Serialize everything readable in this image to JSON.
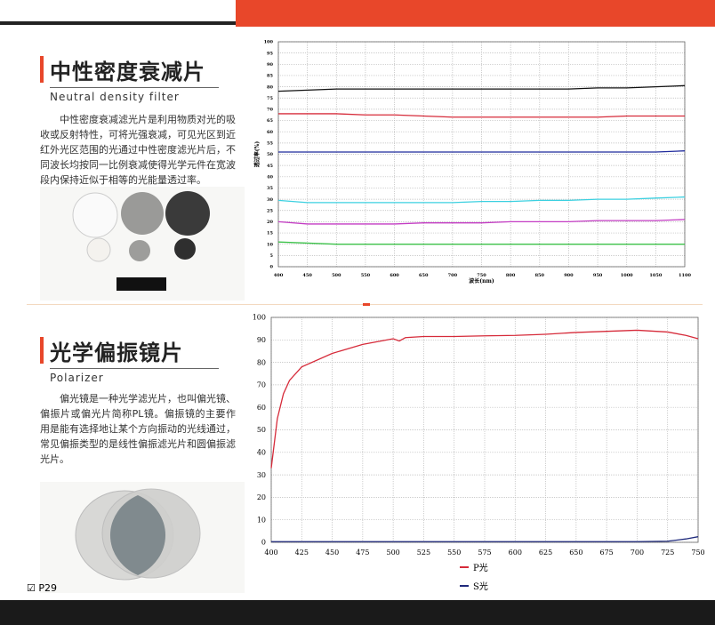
{
  "sections": [
    {
      "title": "中性密度衰减片",
      "subtitle": "Neutral density filter",
      "text": "中性密度衰减滤光片是利用物质对光的吸收或反射特性，可将光强衰减，可见光区到近红外光区范围的光通过中性密度滤光片后，不同波长均按同一比例衰减使得光学元件在宽波段内保持近似于相等的光能量透过率。"
    },
    {
      "title": "光学偏振镜片",
      "subtitle": "Polarizer",
      "text": "偏光镜是一种光学滤光片，也叫偏光镜、偏振片或偏光片简称PL镜。偏振镜的主要作用是能有选择地让某个方向振动的光线通过，常见偏振类型的是线性偏振滤光片和圆偏振滤光片。"
    }
  ],
  "page_label": "P29",
  "chart_data": [
    {
      "type": "line",
      "xlabel": "波长(nm)",
      "ylabel": "透过率(%)",
      "x": [
        400,
        450,
        500,
        550,
        600,
        650,
        700,
        750,
        800,
        850,
        900,
        950,
        1000,
        1050,
        1100
      ],
      "series": [
        {
          "color": "#111111",
          "values": [
            78,
            78.5,
            79,
            79,
            79,
            79,
            79,
            79,
            79,
            79,
            79,
            79.5,
            79.5,
            80,
            80.5
          ]
        },
        {
          "color": "#d62b3a",
          "values": [
            68,
            68,
            68,
            67.5,
            67.5,
            67,
            66.5,
            66.5,
            66.5,
            66.5,
            66.5,
            66.5,
            67,
            67,
            67
          ]
        },
        {
          "color": "#1f2a9c",
          "values": [
            51,
            51,
            51,
            51,
            51,
            51,
            51,
            51,
            51,
            51,
            51,
            51,
            51,
            51,
            51.5
          ]
        },
        {
          "color": "#3cd0e0",
          "values": [
            29.5,
            28.5,
            28.5,
            28.5,
            28.5,
            28.5,
            28.5,
            29,
            29,
            29.5,
            29.5,
            30,
            30,
            30.5,
            31
          ]
        },
        {
          "color": "#c33cc3",
          "values": [
            20,
            19,
            19,
            19,
            19,
            19.5,
            19.5,
            19.5,
            20,
            20,
            20,
            20.5,
            20.5,
            20.5,
            21
          ]
        },
        {
          "color": "#3cc24a",
          "values": [
            11,
            10.5,
            10,
            10,
            10,
            10,
            10,
            10,
            10,
            10,
            10,
            10,
            10,
            10,
            10
          ]
        }
      ],
      "xlim": [
        400,
        1100
      ],
      "xticks": [
        400,
        450,
        500,
        550,
        600,
        650,
        700,
        750,
        800,
        850,
        900,
        950,
        1000,
        1050,
        1100
      ],
      "ylim": [
        0,
        100
      ],
      "yticks": [
        0,
        5,
        10,
        15,
        20,
        25,
        30,
        35,
        40,
        45,
        50,
        55,
        60,
        65,
        70,
        75,
        80,
        85,
        90,
        95,
        100
      ],
      "grid": true
    },
    {
      "type": "line",
      "x": [
        400,
        405,
        410,
        415,
        425,
        450,
        475,
        500,
        505,
        510,
        525,
        550,
        575,
        600,
        625,
        650,
        675,
        700,
        725,
        740,
        750
      ],
      "series": [
        {
          "name": "P光",
          "color": "#d62b3a",
          "values": [
            33,
            55,
            66,
            72,
            78,
            84,
            88,
            90.5,
            89.5,
            91,
            91.5,
            91.5,
            91.8,
            92,
            92.5,
            93.3,
            93.8,
            94.3,
            93.5,
            92,
            90.5
          ]
        },
        {
          "name": "S光",
          "color": "#1f2a7c",
          "values": [
            0.3,
            0.3,
            0.3,
            0.3,
            0.3,
            0.3,
            0.3,
            0.3,
            0.3,
            0.3,
            0.3,
            0.3,
            0.3,
            0.3,
            0.3,
            0.3,
            0.3,
            0.3,
            0.5,
            1.5,
            2.5
          ]
        }
      ],
      "xlim": [
        400,
        750
      ],
      "xticks": [
        400,
        425,
        450,
        475,
        500,
        525,
        550,
        575,
        600,
        625,
        650,
        675,
        700,
        725,
        750
      ],
      "ylim": [
        0,
        100
      ],
      "yticks": [
        0,
        10,
        20,
        30,
        40,
        50,
        60,
        70,
        80,
        90,
        100
      ],
      "grid": true,
      "legend": "bottom"
    }
  ]
}
